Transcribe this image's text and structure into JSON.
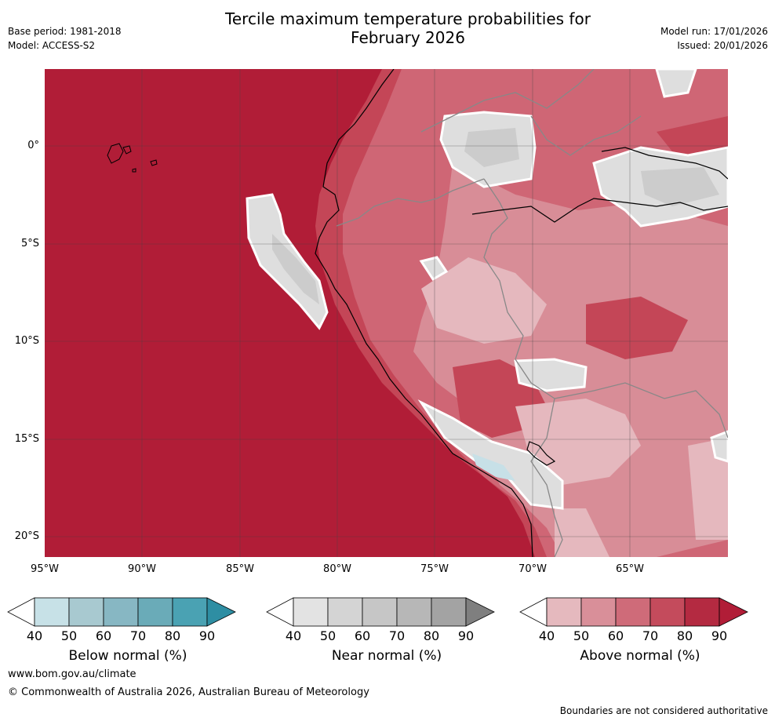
{
  "title_line1": "Tercile maximum temperature probabilities for",
  "title_line2": "February 2026",
  "base_period": "Base period: 1981-2018",
  "model": "Model: ACCESS-S2",
  "model_run": "Model run: 17/01/2026",
  "issued": "Issued: 20/01/2026",
  "map": {
    "lat_ticks": [
      "0°",
      "5°S",
      "10°S",
      "15°S",
      "20°S"
    ],
    "lon_ticks": [
      "95°W",
      "90°W",
      "85°W",
      "80°W",
      "75°W",
      "70°W",
      "65°W"
    ],
    "colors": {
      "ocean_deep": "#b11d37",
      "above_80": "#c44657",
      "above_70": "#cf6675",
      "above_60": "#d88d97",
      "above_50": "#e5b8be",
      "near_50": "#dedede",
      "near_60": "#cccccc",
      "below_50": "#c7e0e7"
    }
  },
  "colorbars": [
    {
      "name": "below",
      "label": "Below normal (%)",
      "ticks": [
        "40",
        "50",
        "60",
        "70",
        "80",
        "90"
      ],
      "colors": [
        "#ffffff",
        "#c7e1e7",
        "#a8c9d0",
        "#87b7c3",
        "#6aabb8",
        "#4aa2b3",
        "#2e8ea3"
      ]
    },
    {
      "name": "near",
      "label": "Near normal (%)",
      "ticks": [
        "40",
        "50",
        "60",
        "70",
        "80",
        "90"
      ],
      "colors": [
        "#ffffff",
        "#e3e3e3",
        "#d4d4d4",
        "#c6c6c6",
        "#b7b7b7",
        "#a3a3a3",
        "#7f7f7f"
      ]
    },
    {
      "name": "above",
      "label": "Above normal (%)",
      "ticks": [
        "40",
        "50",
        "60",
        "70",
        "80",
        "90"
      ],
      "colors": [
        "#ffffff",
        "#e5b9be",
        "#d98f99",
        "#cf6b79",
        "#c44b5c",
        "#b42a41",
        "#b11d37"
      ]
    }
  ],
  "footer_url": "www.bom.gov.au/climate",
  "footer_copyright": "© Commonwealth of Australia 2026, Australian Bureau of Meteorology",
  "disclaimer": "Boundaries are not considered authoritative"
}
